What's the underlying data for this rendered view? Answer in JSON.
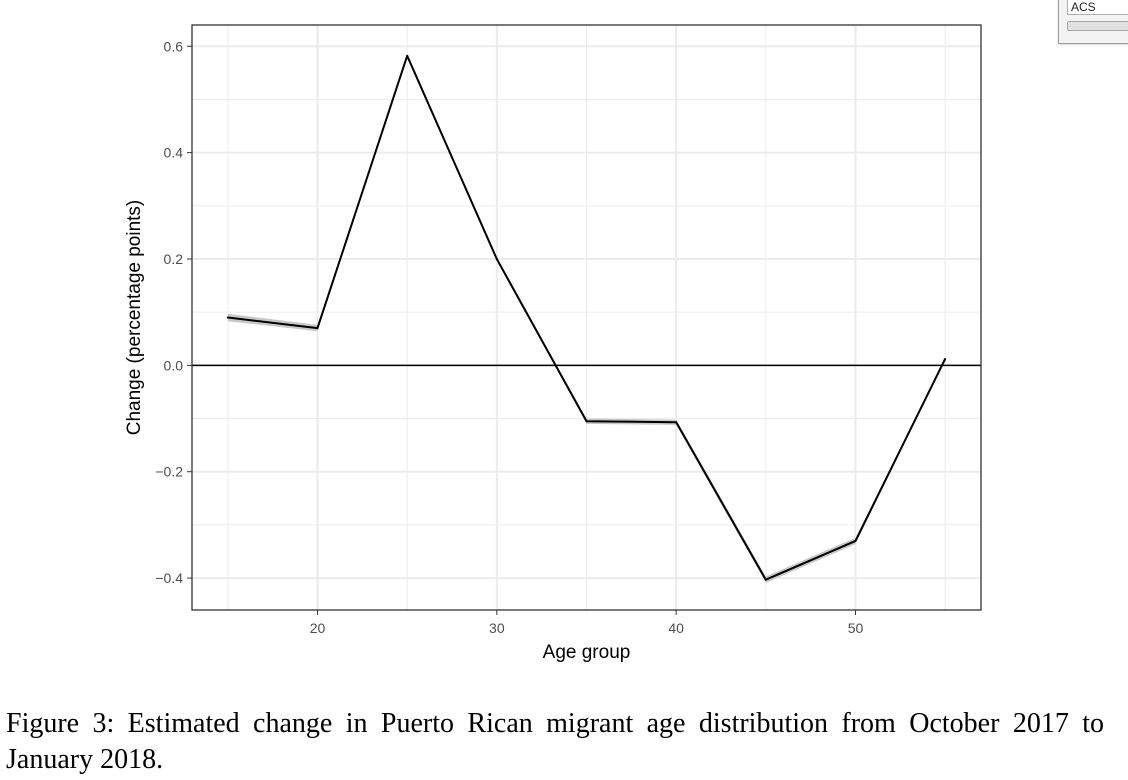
{
  "chart_data": {
    "type": "line",
    "xlabel": "Age group",
    "ylabel": "Change (percentage points)",
    "xlim": [
      13,
      57
    ],
    "ylim": [
      -0.46,
      0.64
    ],
    "x_ticks": [
      20,
      30,
      40,
      50
    ],
    "y_ticks": [
      -0.4,
      -0.2,
      0.0,
      0.2,
      0.4,
      0.6
    ],
    "y_tick_labels": [
      "−0.4",
      "−0.2",
      "0.0",
      "0.2",
      "0.4",
      "0.6"
    ],
    "x_minor_gridlines": [
      15,
      25,
      35,
      45,
      55
    ],
    "y_minor_gridlines": [
      -0.3,
      -0.1,
      0.1,
      0.3,
      0.5
    ],
    "grid": true,
    "reference_line_y": 0,
    "series": [
      {
        "x": [
          15,
          20,
          25,
          30,
          35,
          40,
          45,
          50,
          55
        ],
        "values": [
          0.09,
          0.07,
          0.582,
          0.2,
          -0.105,
          -0.107,
          -0.403,
          -0.33,
          0.012
        ],
        "band_halfwidth": [
          0.007,
          0.006,
          0.002,
          0.002,
          0.005,
          0.005,
          0.006,
          0.006,
          0.002
        ]
      }
    ],
    "colors": {
      "line": "#000000",
      "band": "#c7c7c7",
      "grid": "#ebebeb",
      "panel_border": "#333333"
    }
  },
  "caption": "Figure 3: Estimated change in Puerto Rican migrant age distribution from October 2017 to January 2018.",
  "widget": {
    "field_text": "ACS"
  }
}
